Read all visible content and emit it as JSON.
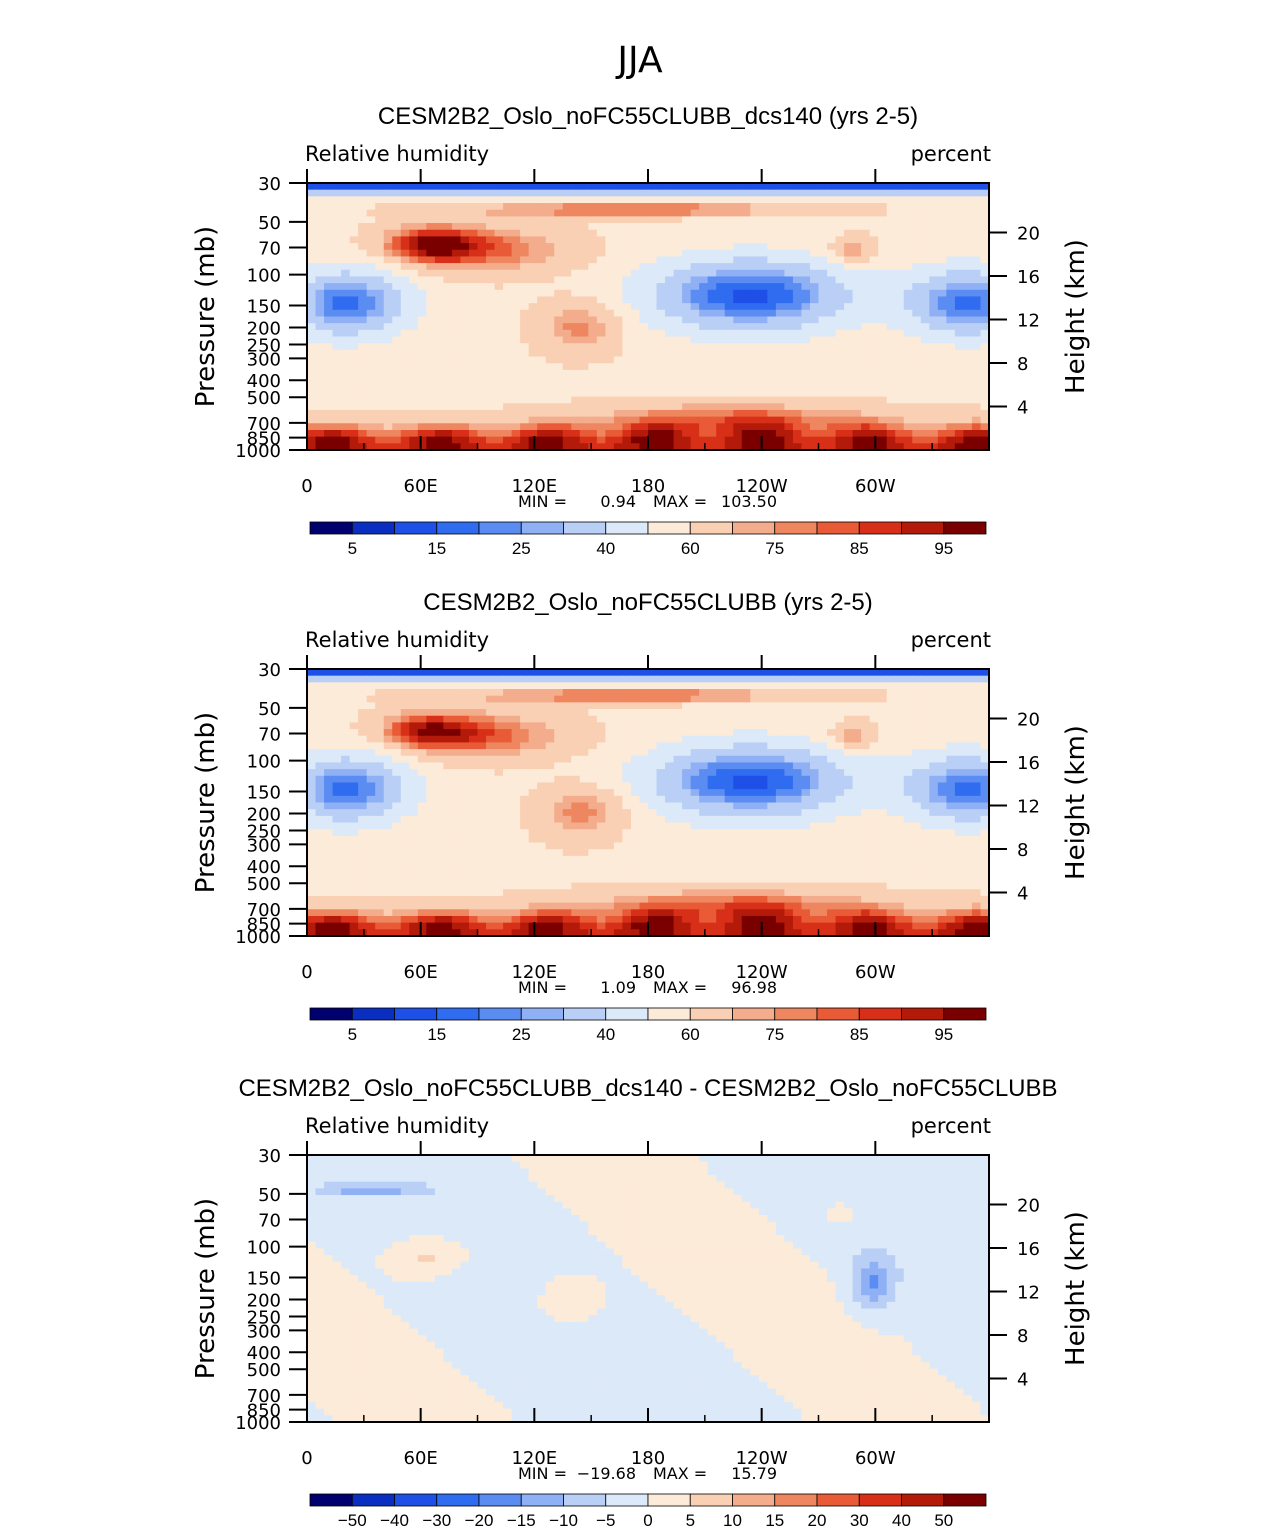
{
  "page_title": "JJA",
  "colors": {
    "rh_scale": [
      "#00006e",
      "#0a2fc0",
      "#1e4fe6",
      "#2f6cf0",
      "#5a8cf2",
      "#8fb0f4",
      "#b9cff6",
      "#dce9f8",
      "#fdebd9",
      "#f9d0b4",
      "#f4ad8c",
      "#ee8660",
      "#e85b36",
      "#d83018",
      "#b31a0a",
      "#7a0000"
    ],
    "diff_scale": [
      "#00006e",
      "#0a2fc0",
      "#1e4fe6",
      "#2f6cf0",
      "#5a8cf2",
      "#8fb0f4",
      "#b9cff6",
      "#dce9f8",
      "#fdebd9",
      "#f9d0b4",
      "#f4ad8c",
      "#ee8660",
      "#e85b36",
      "#d83018",
      "#b31a0a",
      "#7a0000"
    ]
  },
  "chart_data": [
    {
      "type": "heatmap",
      "title": "CESM2B2_Oslo_noFC55CLUBB_dcs140 (yrs 2-5)",
      "variable": "Relative humidity",
      "units": "percent",
      "ylabel": "Pressure (mb)",
      "ylabel_right": "Height (km)",
      "x_ticks": [
        "0",
        "60E",
        "120E",
        "180",
        "120W",
        "60W"
      ],
      "y_ticks": [
        "30",
        "50",
        "70",
        "100",
        "150",
        "200",
        "250",
        "300",
        "400",
        "500",
        "700",
        "850",
        "1000"
      ],
      "y_ticks_right": [
        "20",
        "16",
        "12",
        "8",
        "4"
      ],
      "stats": {
        "min_label": "MIN =",
        "min": "0.94",
        "max_label": "MAX =",
        "max": "103.50"
      },
      "colorbar_labels": [
        "5",
        "15",
        "25",
        "40",
        "60",
        "75",
        "85",
        "95"
      ]
    },
    {
      "type": "heatmap",
      "title": "CESM2B2_Oslo_noFC55CLUBB (yrs 2-5)",
      "variable": "Relative humidity",
      "units": "percent",
      "ylabel": "Pressure (mb)",
      "ylabel_right": "Height (km)",
      "x_ticks": [
        "0",
        "60E",
        "120E",
        "180",
        "120W",
        "60W"
      ],
      "y_ticks": [
        "30",
        "50",
        "70",
        "100",
        "150",
        "200",
        "250",
        "300",
        "400",
        "500",
        "700",
        "850",
        "1000"
      ],
      "y_ticks_right": [
        "20",
        "16",
        "12",
        "8",
        "4"
      ],
      "stats": {
        "min_label": "MIN =",
        "min": "1.09",
        "max_label": "MAX =",
        "max": "96.98"
      },
      "colorbar_labels": [
        "5",
        "15",
        "25",
        "40",
        "60",
        "75",
        "85",
        "95"
      ]
    },
    {
      "type": "heatmap",
      "title": "CESM2B2_Oslo_noFC55CLUBB_dcs140 - CESM2B2_Oslo_noFC55CLUBB",
      "variable": "Relative humidity",
      "units": "percent",
      "ylabel": "Pressure (mb)",
      "ylabel_right": "Height (km)",
      "x_ticks": [
        "0",
        "60E",
        "120E",
        "180",
        "120W",
        "60W"
      ],
      "y_ticks": [
        "30",
        "50",
        "70",
        "100",
        "150",
        "200",
        "250",
        "300",
        "400",
        "500",
        "700",
        "850",
        "1000"
      ],
      "y_ticks_right": [
        "20",
        "16",
        "12",
        "8",
        "4"
      ],
      "stats": {
        "min_label": "MIN =",
        "min": "−19.68",
        "max_label": "MAX =",
        "max": "15.79"
      },
      "colorbar_labels": [
        "−50",
        "−40",
        "−30",
        "−20",
        "−15",
        "−10",
        "−5",
        "0",
        "5",
        "10",
        "15",
        "20",
        "30",
        "40",
        "50"
      ]
    }
  ]
}
